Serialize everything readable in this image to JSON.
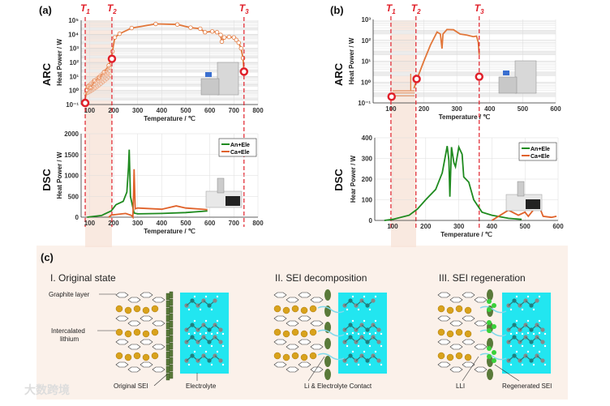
{
  "panels": {
    "a": "(a)",
    "b": "(b)",
    "c": "(c)"
  },
  "row_labels": {
    "arc": "ARC",
    "dsc": "DSC"
  },
  "markers": {
    "t1": "T",
    "t1_sub": "1",
    "t2": "T",
    "t2_sub": "2",
    "t3": "T",
    "t3_sub": "3"
  },
  "colors": {
    "arc_line": "#e2773a",
    "an_ele": "#1e8a1e",
    "ca_ele": "#e0622a",
    "threshold": "#e0202a",
    "band": "#f8e4d8",
    "panel_c_bg": "#fbf1ea",
    "electrolyte": "#22e6f0",
    "sei": "#5a7a3a",
    "regen_sei": "#3ad13a",
    "lithium": "#d9a21c"
  },
  "chart_data": [
    {
      "id": "a_arc",
      "type": "line",
      "yscale": "log",
      "xlabel": "Temperature / ℃",
      "ylabel": "Heat Power / W",
      "xlim": [
        65,
        800
      ],
      "ylim": [
        0.1,
        100000
      ],
      "xticks": [
        "100",
        "200",
        "300",
        "400",
        "500",
        "600",
        "700",
        "800"
      ],
      "yticks": [
        "10⁻¹",
        "10⁰",
        "10¹",
        "10²",
        "10³",
        "10⁴",
        "10⁵"
      ],
      "thresholds": {
        "T1": 82,
        "T2": 193,
        "T3": 742
      },
      "series": [
        {
          "name": "ARC",
          "x": [
            80,
            88,
            95,
            105,
            120,
            140,
            160,
            180,
            190,
            195,
            205,
            225,
            275,
            375,
            465,
            520,
            560,
            580,
            610,
            630,
            645,
            650,
            660,
            680,
            700,
            710,
            720,
            730,
            738,
            742
          ],
          "y": [
            0.15,
            1,
            2,
            1.5,
            5,
            8,
            20,
            60,
            180,
            600,
            6000,
            11000,
            28000,
            55000,
            50000,
            30000,
            25000,
            14000,
            16000,
            14000,
            9000,
            3000,
            6000,
            6500,
            6000,
            4000,
            2500,
            1000,
            200,
            22
          ]
        }
      ],
      "highlight_points": {
        "x": [
          82,
          193,
          742
        ],
        "y": [
          0.13,
          180,
          22
        ]
      }
    },
    {
      "id": "a_dsc",
      "type": "line",
      "xlabel": "Temperature / ℃",
      "ylabel": "Heat Power / W",
      "xlim": [
        65,
        800
      ],
      "ylim": [
        0,
        2000
      ],
      "xticks": [
        "100",
        "200",
        "300",
        "400",
        "500",
        "600",
        "700",
        "800"
      ],
      "yticks": [
        "0",
        "500",
        "1000",
        "1500",
        "2000"
      ],
      "legend": [
        "An+Ele",
        "Ca+Ele"
      ],
      "legend_position": "top-right",
      "series": [
        {
          "name": "An+Ele",
          "x": [
            90,
            150,
            190,
            210,
            240,
            255,
            262,
            265,
            270,
            285,
            300,
            400,
            500,
            590
          ],
          "y": [
            0,
            40,
            150,
            300,
            380,
            600,
            1200,
            1620,
            500,
            100,
            80,
            90,
            110,
            150
          ]
        },
        {
          "name": "Ca+Ele",
          "x": [
            180,
            190,
            250,
            275,
            280,
            283,
            285,
            290,
            300,
            400,
            460,
            500,
            590
          ],
          "y": [
            0,
            50,
            90,
            40,
            0,
            600,
            1150,
            200,
            220,
            190,
            270,
            220,
            180
          ]
        }
      ]
    },
    {
      "id": "b_arc",
      "type": "line",
      "yscale": "log",
      "xlabel": "Temperature / ℃",
      "ylabel": "Heat Power / W",
      "xlim": [
        46,
        600
      ],
      "ylim": [
        0.1,
        1000
      ],
      "xticks": [
        "100",
        "200",
        "300",
        "400",
        "500",
        "600"
      ],
      "yticks": [
        "10⁻¹",
        "10⁰",
        "10¹",
        "10²",
        "10³"
      ],
      "thresholds": {
        "T1": 100,
        "T2": 176,
        "T3": 368
      },
      "series": [
        {
          "name": "ARC",
          "x": [
            170,
            180,
            200,
            220,
            240,
            250,
            255,
            258,
            270,
            290,
            310,
            330,
            350,
            360,
            365,
            368
          ],
          "y": [
            0.5,
            1.5,
            10,
            60,
            250,
            200,
            40,
            200,
            330,
            320,
            200,
            180,
            150,
            160,
            80,
            20
          ]
        }
      ],
      "highlight_points": {
        "x": [
          102,
          178,
          368
        ],
        "y": [
          0.2,
          1.4,
          1.8
        ]
      }
    },
    {
      "id": "b_dsc",
      "type": "line",
      "xlabel": "Temperature / ℃",
      "ylabel": "Hear Power / W",
      "xlim": [
        46,
        600
      ],
      "ylim": [
        0,
        400
      ],
      "xticks": [
        "100",
        "200",
        "300",
        "400",
        "500",
        "600"
      ],
      "yticks": [
        "0",
        "100",
        "200",
        "300",
        "400"
      ],
      "legend": [
        "An+Ele",
        "Ca+Ele"
      ],
      "legend_position": "top-right",
      "series": [
        {
          "name": "An+Ele",
          "x": [
            75,
            100,
            150,
            175,
            200,
            230,
            250,
            265,
            270,
            273,
            278,
            285,
            290,
            300,
            310,
            315,
            330,
            345,
            370,
            400,
            450,
            490
          ],
          "y": [
            0,
            5,
            25,
            55,
            100,
            150,
            230,
            360,
            290,
            115,
            355,
            280,
            260,
            355,
            320,
            210,
            185,
            100,
            40,
            25,
            10,
            5
          ]
        },
        {
          "name": "Ca+Ele",
          "x": [
            400,
            450,
            480,
            500,
            510,
            530,
            540,
            555,
            580,
            595
          ],
          "y": [
            0,
            50,
            25,
            40,
            20,
            60,
            80,
            20,
            15,
            20
          ]
        }
      ]
    }
  ],
  "diagram": {
    "stages": [
      {
        "title": "I. Original state",
        "labels": [
          "Graphite layer",
          "Intercalated",
          "lithium",
          "Original SEI",
          "Electrolyte"
        ]
      },
      {
        "title": "II. SEI decomposition",
        "labels": [
          "Li & Electrolyte Contact"
        ]
      },
      {
        "title": "III. SEI regeneration",
        "labels": [
          "LLI",
          "Regenerated SEI"
        ]
      }
    ]
  },
  "watermark": "大数跨境"
}
